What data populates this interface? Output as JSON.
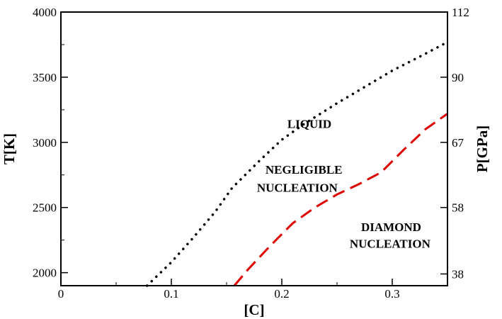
{
  "chart_data": {
    "type": "line",
    "xlabel": "[C]",
    "ylabel": "T[K]",
    "y2label": "P[GPa]",
    "xlim": [
      0,
      0.35
    ],
    "ylim": [
      1900,
      4000
    ],
    "x_ticks": [
      "0",
      "0.1",
      "0.2",
      "0.3"
    ],
    "y_ticks": [
      "2000",
      "2500",
      "3000",
      "3500",
      "4000"
    ],
    "y2_ticks": [
      {
        "label": "38",
        "at_T": 1990
      },
      {
        "label": "58",
        "at_T": 2500
      },
      {
        "label": "67",
        "at_T": 3000
      },
      {
        "label": "90",
        "at_T": 3500
      },
      {
        "label": "112",
        "at_T": 4000
      }
    ],
    "grid": false,
    "legend": "none",
    "series": [
      {
        "style": "dotted",
        "color": "#000000",
        "x": [
          0.078,
          0.1,
          0.12,
          0.14,
          0.155,
          0.18,
          0.2,
          0.22,
          0.25,
          0.28,
          0.3,
          0.33,
          0.35
        ],
        "y": [
          1900,
          2080,
          2270,
          2470,
          2650,
          2860,
          3020,
          3140,
          3300,
          3450,
          3550,
          3680,
          3770
        ]
      },
      {
        "style": "dashed",
        "color": "#e00000",
        "x": [
          0.157,
          0.17,
          0.19,
          0.21,
          0.23,
          0.25,
          0.27,
          0.29,
          0.31,
          0.33,
          0.35
        ],
        "y": [
          1900,
          2030,
          2210,
          2380,
          2500,
          2600,
          2680,
          2770,
          2940,
          3100,
          3220
        ]
      }
    ],
    "annotations": [
      {
        "text": "LIQUID",
        "x": 0.225,
        "y": 3110,
        "anchor": "start-ref"
      },
      {
        "text": "NEGLIGIBLE",
        "x": 0.22,
        "y": 2760
      },
      {
        "text": "NUCLEATION",
        "x": 0.214,
        "y": 2620
      },
      {
        "text": "DIAMOND",
        "x": 0.299,
        "y": 2320
      },
      {
        "text": "NUCLEATION",
        "x": 0.298,
        "y": 2190
      }
    ]
  }
}
